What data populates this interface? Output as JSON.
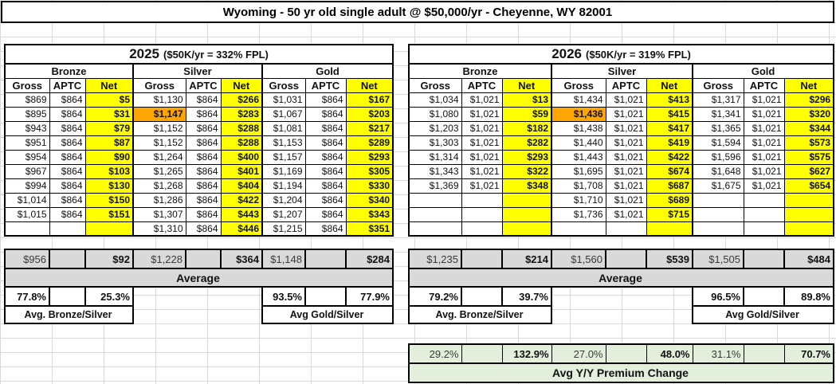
{
  "title": "Wyoming - 50 yr old single adult @ $50,000/yr - Cheyenne, WY 82001",
  "colors": {
    "net_highlight": "#FFFF00",
    "benchmark_highlight": "#FFA500",
    "average_bg": "#D9D9D9",
    "yoy_bg": "#E2EFDA"
  },
  "tables": [
    {
      "year": "2025",
      "subtitle": "($50K/yr = 332% FPL)",
      "tiers": [
        "Bronze",
        "Silver",
        "Gold"
      ],
      "col_headers": [
        "Gross",
        "APTC",
        "Net"
      ],
      "highlight_cell": {
        "row": 1,
        "col": 3
      },
      "rows": [
        [
          "$869",
          "$864",
          "$5",
          "$1,130",
          "$864",
          "$266",
          "$1,031",
          "$864",
          "$167"
        ],
        [
          "$895",
          "$864",
          "$31",
          "$1,147",
          "$864",
          "$283",
          "$1,067",
          "$864",
          "$203"
        ],
        [
          "$943",
          "$864",
          "$79",
          "$1,152",
          "$864",
          "$288",
          "$1,081",
          "$864",
          "$217"
        ],
        [
          "$951",
          "$864",
          "$87",
          "$1,152",
          "$864",
          "$288",
          "$1,153",
          "$864",
          "$289"
        ],
        [
          "$954",
          "$864",
          "$90",
          "$1,264",
          "$864",
          "$400",
          "$1,157",
          "$864",
          "$293"
        ],
        [
          "$967",
          "$864",
          "$103",
          "$1,265",
          "$864",
          "$401",
          "$1,169",
          "$864",
          "$305"
        ],
        [
          "$994",
          "$864",
          "$130",
          "$1,268",
          "$864",
          "$404",
          "$1,194",
          "$864",
          "$330"
        ],
        [
          "$1,014",
          "$864",
          "$150",
          "$1,286",
          "$864",
          "$422",
          "$1,204",
          "$864",
          "$340"
        ],
        [
          "$1,015",
          "$864",
          "$151",
          "$1,307",
          "$864",
          "$443",
          "$1,207",
          "$864",
          "$343"
        ],
        [
          "",
          "",
          "",
          "$1,310",
          "$864",
          "$446",
          "$1,215",
          "$864",
          "$351"
        ]
      ],
      "average": {
        "values": [
          "$956",
          "",
          "$92",
          "$1,228",
          "",
          "$364",
          "$1,148",
          "",
          "$284"
        ],
        "label": "Average"
      },
      "ratio": {
        "values": [
          "77.8%",
          "",
          "25.3%",
          "",
          "",
          "",
          "93.5%",
          "",
          "77.9%"
        ],
        "left_label": "Avg. Bronze/Silver",
        "right_label": "Avg Gold/Silver"
      }
    },
    {
      "year": "2026",
      "subtitle": "($50K/yr = 319% FPL)",
      "tiers": [
        "Bronze",
        "Silver",
        "Gold"
      ],
      "col_headers": [
        "Gross",
        "APTC",
        "Net"
      ],
      "highlight_cell": {
        "row": 1,
        "col": 3
      },
      "rows": [
        [
          "$1,034",
          "$1,021",
          "$13",
          "$1,434",
          "$1,021",
          "$413",
          "$1,317",
          "$1,021",
          "$296"
        ],
        [
          "$1,080",
          "$1,021",
          "$59",
          "$1,436",
          "$1,021",
          "$415",
          "$1,341",
          "$1,021",
          "$320"
        ],
        [
          "$1,203",
          "$1,021",
          "$182",
          "$1,438",
          "$1,021",
          "$417",
          "$1,365",
          "$1,021",
          "$344"
        ],
        [
          "$1,303",
          "$1,021",
          "$282",
          "$1,440",
          "$1,021",
          "$419",
          "$1,594",
          "$1,021",
          "$573"
        ],
        [
          "$1,314",
          "$1,021",
          "$293",
          "$1,443",
          "$1,021",
          "$422",
          "$1,596",
          "$1,021",
          "$575"
        ],
        [
          "$1,343",
          "$1,021",
          "$322",
          "$1,695",
          "$1,021",
          "$674",
          "$1,648",
          "$1,021",
          "$627"
        ],
        [
          "$1,369",
          "$1,021",
          "$348",
          "$1,708",
          "$1,021",
          "$687",
          "$1,675",
          "$1,021",
          "$654"
        ],
        [
          "",
          "",
          "",
          "$1,710",
          "$1,021",
          "$689",
          "",
          "",
          ""
        ],
        [
          "",
          "",
          "",
          "$1,736",
          "$1,021",
          "$715",
          "",
          "",
          ""
        ],
        [
          "",
          "",
          "",
          "",
          "",
          "",
          "",
          "",
          ""
        ]
      ],
      "average": {
        "values": [
          "$1,235",
          "",
          "$214",
          "$1,560",
          "",
          "$539",
          "$1,505",
          "",
          "$484"
        ],
        "label": "Average"
      },
      "ratio": {
        "values": [
          "79.2%",
          "",
          "39.7%",
          "",
          "",
          "",
          "96.5%",
          "",
          "89.8%"
        ],
        "left_label": "Avg. Bronze/Silver",
        "right_label": "Avg Gold/Silver"
      }
    }
  ],
  "yoy": {
    "values": [
      "29.2%",
      "",
      "132.9%",
      "27.0%",
      "",
      "48.0%",
      "31.1%",
      "",
      "70.7%"
    ],
    "label": "Avg Y/Y Premium Change"
  }
}
